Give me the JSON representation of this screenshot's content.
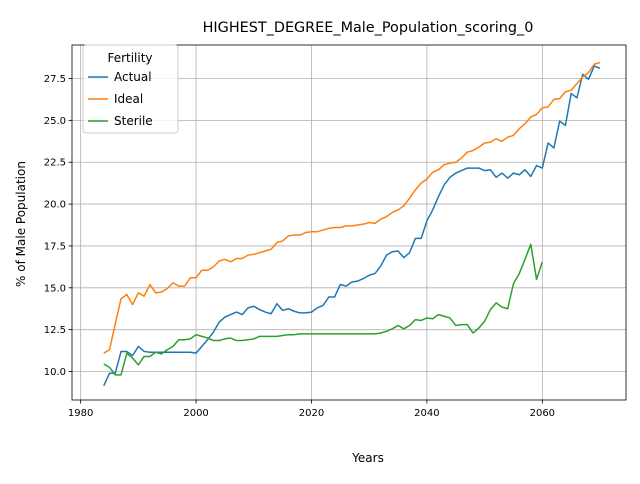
{
  "chart_data": {
    "type": "line",
    "title": "HIGHEST_DEGREE_Male_Population_scoring_0",
    "xlabel": "Years",
    "ylabel": "% of Male Population",
    "xlim": [
      1978.5,
      2074.5
    ],
    "ylim": [
      8.3,
      29.5
    ],
    "x_ticks": [
      1980,
      2000,
      2020,
      2040,
      2060
    ],
    "y_ticks": [
      10.0,
      12.5,
      15.0,
      17.5,
      20.0,
      22.5,
      25.0,
      27.5
    ],
    "grid": true,
    "legend": {
      "title": "Fertility",
      "placement": "top-left"
    },
    "series": [
      {
        "name": "Actual",
        "color": "#1f77b4",
        "points": [
          [
            1984,
            9.15
          ],
          [
            1985,
            9.9
          ],
          [
            1986,
            9.9
          ],
          [
            1987,
            11.2
          ],
          [
            1988,
            11.2
          ],
          [
            1989,
            10.95
          ],
          [
            1990,
            11.5
          ],
          [
            1991,
            11.2
          ],
          [
            1992,
            11.15
          ],
          [
            1993,
            11.15
          ],
          [
            1994,
            11.15
          ],
          [
            1995,
            11.15
          ],
          [
            1996,
            11.15
          ],
          [
            1997,
            11.15
          ],
          [
            1998,
            11.15
          ],
          [
            1999,
            11.15
          ],
          [
            2000,
            11.1
          ],
          [
            2001,
            11.5
          ],
          [
            2002,
            11.9
          ],
          [
            2003,
            12.35
          ],
          [
            2004,
            12.95
          ],
          [
            2005,
            13.25
          ],
          [
            2006,
            13.4
          ],
          [
            2007,
            13.55
          ],
          [
            2008,
            13.4
          ],
          [
            2009,
            13.8
          ],
          [
            2010,
            13.9
          ],
          [
            2011,
            13.7
          ],
          [
            2012,
            13.55
          ],
          [
            2013,
            13.45
          ],
          [
            2014,
            14.05
          ],
          [
            2015,
            13.65
          ],
          [
            2016,
            13.75
          ],
          [
            2017,
            13.6
          ],
          [
            2018,
            13.5
          ],
          [
            2019,
            13.5
          ],
          [
            2020,
            13.55
          ],
          [
            2021,
            13.8
          ],
          [
            2022,
            13.95
          ],
          [
            2023,
            14.45
          ],
          [
            2024,
            14.45
          ],
          [
            2025,
            15.2
          ],
          [
            2026,
            15.1
          ],
          [
            2027,
            15.35
          ],
          [
            2028,
            15.4
          ],
          [
            2029,
            15.55
          ],
          [
            2030,
            15.75
          ],
          [
            2031,
            15.85
          ],
          [
            2032,
            16.3
          ],
          [
            2033,
            16.95
          ],
          [
            2034,
            17.15
          ],
          [
            2035,
            17.2
          ],
          [
            2036,
            16.8
          ],
          [
            2037,
            17.1
          ],
          [
            2038,
            17.95
          ],
          [
            2039,
            17.95
          ],
          [
            2040,
            19.0
          ],
          [
            2041,
            19.65
          ],
          [
            2042,
            20.45
          ],
          [
            2043,
            21.15
          ],
          [
            2044,
            21.6
          ],
          [
            2045,
            21.85
          ],
          [
            2046,
            22.0
          ],
          [
            2047,
            22.15
          ],
          [
            2048,
            22.15
          ],
          [
            2049,
            22.15
          ],
          [
            2050,
            22.0
          ],
          [
            2051,
            22.05
          ],
          [
            2052,
            21.6
          ],
          [
            2053,
            21.85
          ],
          [
            2054,
            21.55
          ],
          [
            2055,
            21.85
          ],
          [
            2056,
            21.75
          ],
          [
            2057,
            22.05
          ],
          [
            2058,
            21.65
          ],
          [
            2059,
            22.3
          ],
          [
            2060,
            22.15
          ],
          [
            2061,
            23.65
          ],
          [
            2062,
            23.35
          ],
          [
            2063,
            24.95
          ],
          [
            2064,
            24.7
          ],
          [
            2065,
            26.6
          ],
          [
            2066,
            26.35
          ],
          [
            2067,
            27.75
          ],
          [
            2068,
            27.45
          ],
          [
            2069,
            28.25
          ],
          [
            2070,
            28.1
          ]
        ]
      },
      {
        "name": "Ideal",
        "color": "#ff7f0e",
        "points": [
          [
            1984,
            11.1
          ],
          [
            1985,
            11.3
          ],
          [
            1986,
            12.85
          ],
          [
            1987,
            14.35
          ],
          [
            1988,
            14.6
          ],
          [
            1989,
            14.0
          ],
          [
            1990,
            14.7
          ],
          [
            1991,
            14.5
          ],
          [
            1992,
            15.2
          ],
          [
            1993,
            14.7
          ],
          [
            1994,
            14.75
          ],
          [
            1995,
            14.95
          ],
          [
            1996,
            15.3
          ],
          [
            1997,
            15.1
          ],
          [
            1998,
            15.1
          ],
          [
            1999,
            15.6
          ],
          [
            2000,
            15.6
          ],
          [
            2001,
            16.05
          ],
          [
            2002,
            16.05
          ],
          [
            2003,
            16.25
          ],
          [
            2004,
            16.6
          ],
          [
            2005,
            16.7
          ],
          [
            2006,
            16.55
          ],
          [
            2007,
            16.75
          ],
          [
            2008,
            16.75
          ],
          [
            2009,
            16.95
          ],
          [
            2010,
            17.0
          ],
          [
            2011,
            17.1
          ],
          [
            2012,
            17.2
          ],
          [
            2013,
            17.3
          ],
          [
            2014,
            17.7
          ],
          [
            2015,
            17.8
          ],
          [
            2016,
            18.1
          ],
          [
            2017,
            18.15
          ],
          [
            2018,
            18.15
          ],
          [
            2019,
            18.3
          ],
          [
            2020,
            18.35
          ],
          [
            2021,
            18.35
          ],
          [
            2022,
            18.45
          ],
          [
            2023,
            18.55
          ],
          [
            2024,
            18.6
          ],
          [
            2025,
            18.6
          ],
          [
            2026,
            18.7
          ],
          [
            2027,
            18.7
          ],
          [
            2028,
            18.75
          ],
          [
            2029,
            18.8
          ],
          [
            2030,
            18.9
          ],
          [
            2031,
            18.85
          ],
          [
            2032,
            19.1
          ],
          [
            2033,
            19.25
          ],
          [
            2034,
            19.5
          ],
          [
            2035,
            19.65
          ],
          [
            2036,
            19.9
          ],
          [
            2037,
            20.35
          ],
          [
            2038,
            20.85
          ],
          [
            2039,
            21.25
          ],
          [
            2040,
            21.5
          ],
          [
            2041,
            21.9
          ],
          [
            2042,
            22.05
          ],
          [
            2043,
            22.35
          ],
          [
            2044,
            22.45
          ],
          [
            2045,
            22.5
          ],
          [
            2046,
            22.75
          ],
          [
            2047,
            23.1
          ],
          [
            2048,
            23.2
          ],
          [
            2049,
            23.4
          ],
          [
            2050,
            23.65
          ],
          [
            2051,
            23.7
          ],
          [
            2052,
            23.9
          ],
          [
            2053,
            23.75
          ],
          [
            2054,
            24.0
          ],
          [
            2055,
            24.1
          ],
          [
            2056,
            24.5
          ],
          [
            2057,
            24.8
          ],
          [
            2058,
            25.2
          ],
          [
            2059,
            25.35
          ],
          [
            2060,
            25.75
          ],
          [
            2061,
            25.8
          ],
          [
            2062,
            26.25
          ],
          [
            2063,
            26.3
          ],
          [
            2064,
            26.7
          ],
          [
            2065,
            26.8
          ],
          [
            2066,
            27.2
          ],
          [
            2067,
            27.6
          ],
          [
            2068,
            27.85
          ],
          [
            2069,
            28.35
          ],
          [
            2070,
            28.45
          ]
        ]
      },
      {
        "name": "Sterile",
        "color": "#2ca02c",
        "points": [
          [
            1984,
            10.45
          ],
          [
            1985,
            10.25
          ],
          [
            1986,
            9.8
          ],
          [
            1987,
            9.8
          ],
          [
            1988,
            11.1
          ],
          [
            1989,
            10.8
          ],
          [
            1990,
            10.4
          ],
          [
            1991,
            10.9
          ],
          [
            1992,
            10.9
          ],
          [
            1993,
            11.15
          ],
          [
            1994,
            11.05
          ],
          [
            1995,
            11.3
          ],
          [
            1996,
            11.5
          ],
          [
            1997,
            11.9
          ],
          [
            1998,
            11.9
          ],
          [
            1999,
            11.95
          ],
          [
            2000,
            12.2
          ],
          [
            2001,
            12.1
          ],
          [
            2002,
            12.0
          ],
          [
            2003,
            11.85
          ],
          [
            2004,
            11.85
          ],
          [
            2005,
            11.95
          ],
          [
            2006,
            12.0
          ],
          [
            2007,
            11.85
          ],
          [
            2008,
            11.85
          ],
          [
            2009,
            11.9
          ],
          [
            2010,
            11.95
          ],
          [
            2011,
            12.1
          ],
          [
            2012,
            12.1
          ],
          [
            2013,
            12.1
          ],
          [
            2014,
            12.1
          ],
          [
            2015,
            12.15
          ],
          [
            2016,
            12.2
          ],
          [
            2017,
            12.2
          ],
          [
            2018,
            12.25
          ],
          [
            2019,
            12.25
          ],
          [
            2020,
            12.25
          ],
          [
            2021,
            12.25
          ],
          [
            2022,
            12.25
          ],
          [
            2023,
            12.25
          ],
          [
            2024,
            12.25
          ],
          [
            2025,
            12.25
          ],
          [
            2026,
            12.25
          ],
          [
            2027,
            12.25
          ],
          [
            2028,
            12.25
          ],
          [
            2029,
            12.25
          ],
          [
            2030,
            12.25
          ],
          [
            2031,
            12.25
          ],
          [
            2032,
            12.3
          ],
          [
            2033,
            12.4
          ],
          [
            2034,
            12.55
          ],
          [
            2035,
            12.75
          ],
          [
            2036,
            12.55
          ],
          [
            2037,
            12.75
          ],
          [
            2038,
            13.1
          ],
          [
            2039,
            13.05
          ],
          [
            2040,
            13.2
          ],
          [
            2041,
            13.15
          ],
          [
            2042,
            13.4
          ],
          [
            2043,
            13.3
          ],
          [
            2044,
            13.2
          ],
          [
            2045,
            12.75
          ],
          [
            2046,
            12.8
          ],
          [
            2047,
            12.8
          ],
          [
            2048,
            12.3
          ],
          [
            2049,
            12.6
          ],
          [
            2050,
            13.0
          ],
          [
            2051,
            13.7
          ],
          [
            2052,
            14.1
          ],
          [
            2053,
            13.85
          ],
          [
            2054,
            13.75
          ],
          [
            2055,
            15.25
          ],
          [
            2056,
            15.85
          ],
          [
            2057,
            16.7
          ],
          [
            2058,
            17.6
          ],
          [
            2059,
            15.5
          ],
          [
            2060,
            16.55
          ]
        ]
      }
    ]
  }
}
